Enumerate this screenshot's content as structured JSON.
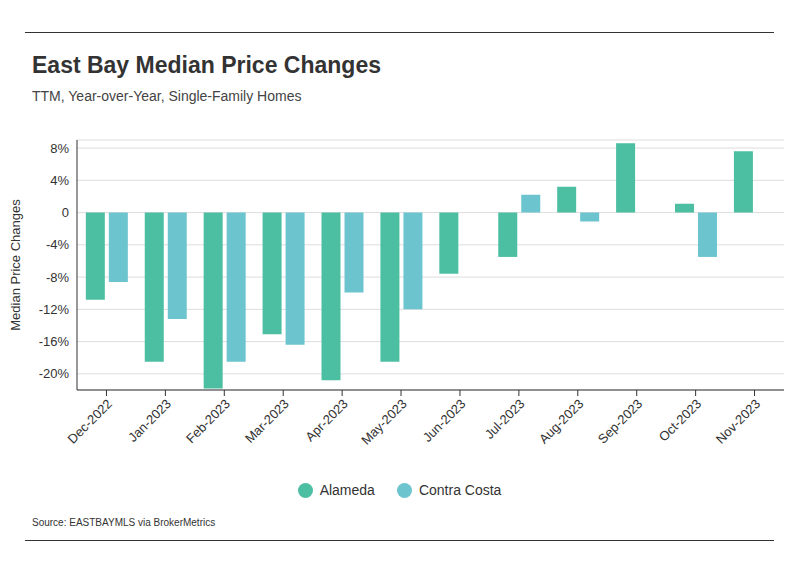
{
  "chart_data": {
    "type": "bar",
    "title": "East Bay Median Price Changes",
    "subtitle": "TTM, Year-over-Year, Single-Family Homes",
    "y_label": "Median Price Changes",
    "source": "Source:  EASTBAYMLS via BrokerMetrics",
    "categories": [
      "Dec-2022",
      "Jan-2023",
      "Feb-2023",
      "Mar-2023",
      "Apr-2023",
      "May-2023",
      "Jun-2023",
      "Jul-2023",
      "Aug-2023",
      "Sep-2023",
      "Oct-2023",
      "Nov-2023"
    ],
    "series": [
      {
        "name": "Alameda",
        "color": "#4cbfa3",
        "values": [
          -10.8,
          -18.5,
          -21.8,
          -15.1,
          -20.8,
          -18.5,
          -7.6,
          -5.5,
          3.2,
          8.6,
          1.1,
          7.6
        ]
      },
      {
        "name": "Contra Costa",
        "color": "#6cc4cf",
        "values": [
          -8.6,
          -13.2,
          -18.5,
          -16.4,
          -9.9,
          -12.0,
          null,
          2.2,
          -1.1,
          null,
          -5.5,
          null
        ]
      }
    ],
    "ylim": [
      -22,
      9
    ],
    "yticks": [
      {
        "value": -20,
        "label": "-20%"
      },
      {
        "value": -16,
        "label": "-16%"
      },
      {
        "value": -12,
        "label": "-12%"
      },
      {
        "value": -8,
        "label": "-8%"
      },
      {
        "value": -4,
        "label": "-4%"
      },
      0,
      {
        "value": 4,
        "label": "4%"
      },
      {
        "value": 8,
        "label": "8%"
      }
    ],
    "grid": true,
    "legend": "bottom"
  }
}
